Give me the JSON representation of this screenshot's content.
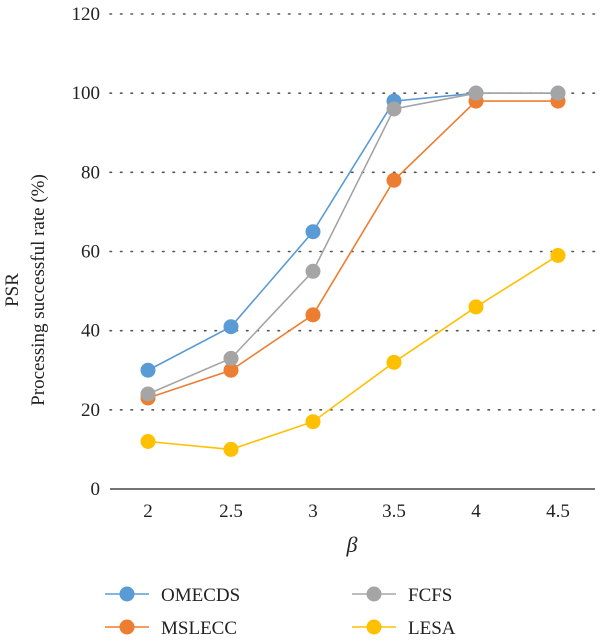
{
  "chart_data": {
    "type": "line",
    "xlabel": "β",
    "ylabel_lines": [
      "PSR",
      "Processing successful rate (%)"
    ],
    "ylim": [
      0,
      120
    ],
    "yticks": [
      0,
      20,
      40,
      60,
      80,
      100,
      120
    ],
    "categories": [
      "2",
      "2.5",
      "3",
      "3.5",
      "4",
      "4.5"
    ],
    "grid": "horizontal dotted",
    "legend_position": "bottom",
    "series": [
      {
        "name": "OMECDS",
        "color": "#5b9bd5",
        "values": [
          30,
          41,
          65,
          98,
          100,
          100
        ]
      },
      {
        "name": "MSLECC",
        "color": "#ed7d31",
        "values": [
          23,
          30,
          44,
          78,
          98,
          98
        ]
      },
      {
        "name": "FCFS",
        "color": "#a5a5a5",
        "values": [
          24,
          33,
          55,
          96,
          100,
          100
        ]
      },
      {
        "name": "LESA",
        "color": "#ffc000",
        "values": [
          12,
          10,
          17,
          32,
          46,
          59
        ]
      }
    ]
  }
}
